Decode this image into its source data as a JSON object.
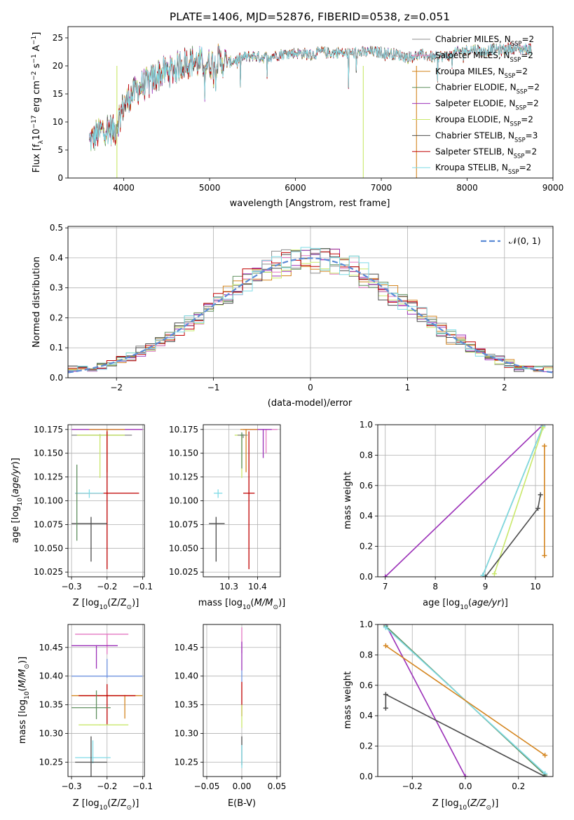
{
  "suptitle": "PLATE=1406, MJD=52876, FIBERID=0538, z=0.051",
  "colors": {
    "Chabrier MILES": "#8c8c8c",
    "Salpeter MILES": "#e377c2",
    "Kroupa MILES": "#d4851f",
    "Chabrier ELODIE": "#5f8f5f",
    "Salpeter ELODIE": "#9b30b8",
    "Kroupa ELODIE": "#c9e86a",
    "Chabrier STELIB": "#4d4d4d",
    "Salpeter STELIB": "#c00000",
    "Kroupa STELIB": "#7fdbe6",
    "gauss": "#5b8bd6",
    "blue": "#6f93e0"
  },
  "chart_data": [
    {
      "id": "spectrum",
      "type": "line",
      "xlabel": "wavelength [Angstrom, rest frame]",
      "ylabel": "Flux [f",
      "ylabel_sub": "λ",
      "ylabel_mid": "10",
      "ylabel_exp": "−17",
      "ylabel_tail": " erg cm",
      "ylabel_exp2": "−2",
      "ylabel_s": " s",
      "ylabel_exp3": "−1",
      "ylabel_A": " A",
      "ylabel_exp4": "−1",
      "ylabel_end": "]",
      "xlim": [
        3350,
        9000
      ],
      "ylim": [
        0,
        27
      ],
      "xticks": [
        "4000",
        "5000",
        "6000",
        "7000",
        "8000",
        "9000"
      ],
      "xtick_values": [
        4000,
        5000,
        6000,
        7000,
        8000,
        9000
      ],
      "yticks": [
        "0",
        "5",
        "10",
        "15",
        "20",
        "25"
      ],
      "ytick_values": [
        0,
        5,
        10,
        15,
        20,
        25
      ],
      "legend_position": "upper-right",
      "x_range": [
        3600,
        8750
      ],
      "envelope": {
        "x": [
          3600,
          3700,
          3800,
          3900,
          3950,
          4000,
          4100,
          4200,
          4300,
          4400,
          4500,
          4600,
          4700,
          4800,
          4900,
          5000,
          5100,
          5200,
          5300,
          5400,
          5500,
          5600,
          5700,
          5800,
          5900,
          6000,
          6100,
          6200,
          6300,
          6400,
          6500,
          6600,
          6700,
          6800,
          6900,
          7000,
          7100,
          7200,
          7300,
          7400,
          7500,
          7600,
          7700,
          7800,
          7900,
          8000,
          8100,
          8200,
          8300,
          8400,
          8500,
          8600,
          8750
        ],
        "y": [
          6.5,
          8,
          9,
          8.5,
          11,
          13,
          15,
          16.5,
          17,
          18.5,
          19,
          19.5,
          20.5,
          20.8,
          20.5,
          20.5,
          21,
          20.5,
          21,
          21.5,
          21.8,
          21.5,
          21.7,
          22,
          22.2,
          22.3,
          22.2,
          22,
          22.5,
          22.3,
          22.4,
          22.2,
          22.3,
          22.4,
          22.5,
          22.4,
          22.2,
          22,
          21.5,
          21.8,
          22,
          21.5,
          21.7,
          21.8,
          22.5,
          22.8,
          23,
          22.5,
          23,
          22.8,
          23.2,
          23,
          23
        ]
      },
      "series": [
        {
          "name": "Chabrier MILES",
          "nssp": "2"
        },
        {
          "name": "Salpeter MILES",
          "nssp": "2"
        },
        {
          "name": "Kroupa MILES",
          "nssp": "2"
        },
        {
          "name": "Chabrier ELODIE",
          "nssp": "2"
        },
        {
          "name": "Salpeter ELODIE",
          "nssp": "2"
        },
        {
          "name": "Kroupa ELODIE",
          "nssp": "2"
        },
        {
          "name": "Chabrier STELIB",
          "nssp": "3"
        },
        {
          "name": "Salpeter STELIB",
          "nssp": "2"
        },
        {
          "name": "Kroupa STELIB",
          "nssp": "2"
        }
      ],
      "legend_sub": "SSP"
    },
    {
      "id": "residuals",
      "type": "line",
      "xlabel": "(data-model)/error",
      "ylabel": "Normed distribution",
      "xlim": [
        -2.5,
        2.5
      ],
      "ylim": [
        0,
        0.505
      ],
      "xticks": [
        "−2",
        "−1",
        "0",
        "1",
        "2"
      ],
      "xtick_values": [
        -2,
        -1,
        0,
        1,
        2
      ],
      "yticks": [
        "0.0",
        "0.1",
        "0.2",
        "0.3",
        "0.4",
        "0.5"
      ],
      "ytick_values": [
        0,
        0.1,
        0.2,
        0.3,
        0.4,
        0.5
      ],
      "grid": true,
      "legend_position": "upper-right",
      "gauss_label": "𝒩(0, 1)",
      "bin_width": 0.1,
      "hist_range": [
        -2.5,
        2.5
      ]
    },
    {
      "id": "age_vs_Z",
      "type": "scatter",
      "xlabel": "Z [log",
      "xlabel_sub": "10",
      "xlabel_tail": "(Z/Z",
      "xlabel_sub2": "⊙",
      "xlabel_end": ")]",
      "ylabel": "age  [log",
      "ylabel_sub": "10",
      "ylabel_tail": "(age/yr)]",
      "xlim": [
        -0.31,
        -0.095
      ],
      "ylim": [
        10.02,
        10.18
      ],
      "xticks": [
        "−0.3",
        "−0.2",
        "−0.1"
      ],
      "xtick_values": [
        -0.3,
        -0.2,
        -0.1
      ],
      "yticks": [
        "10.025",
        "10.050",
        "10.075",
        "10.100",
        "10.125",
        "10.150",
        "10.175"
      ],
      "ytick_values": [
        10.025,
        10.05,
        10.075,
        10.1,
        10.125,
        10.15,
        10.175
      ],
      "grid": true,
      "points": [
        {
          "s": "Salpeter MILES",
          "x": -0.2,
          "xerr": [
            0.1,
            0.1
          ],
          "y": 10.175,
          "yerr": [
            0.005,
            0
          ]
        },
        {
          "s": "Salpeter ELODIE",
          "x": -0.2,
          "xerr": [
            0.1,
            0.1
          ],
          "y": 10.175,
          "yerr": [
            0.045,
            0
          ]
        },
        {
          "s": "Kroupa MILES",
          "x": -0.2,
          "xerr": [
            0.05,
            0.05
          ],
          "y": 10.175,
          "yerr": [
            0.045,
            0
          ]
        },
        {
          "s": "Chabrier MILES",
          "x": -0.22,
          "xerr": [
            0.08,
            0.09
          ],
          "y": 10.169,
          "yerr": [
            0.003,
            0.001
          ]
        },
        {
          "s": "Kroupa ELODIE",
          "x": -0.22,
          "xerr": [
            0.065,
            0.07
          ],
          "y": 10.169,
          "yerr": [
            0.045,
            0
          ]
        },
        {
          "s": "Salpeter STELIB",
          "x": -0.2,
          "xerr": [
            0.09,
            0.09
          ],
          "y": 10.108,
          "yerr": [
            0.08,
            0.065
          ]
        },
        {
          "s": "Kroupa STELIB",
          "x": -0.25,
          "xerr": [
            0.04,
            0.04
          ],
          "y": 10.108,
          "yerr": [
            0.005,
            0.004
          ]
        },
        {
          "s": "Chabrier STELIB",
          "x": -0.245,
          "xerr": [
            0.055,
            0.045
          ],
          "y": 10.076,
          "yerr": [
            0.04,
            0.007
          ]
        },
        {
          "s": "Chabrier ELODIE",
          "x": -0.285,
          "xerr": [
            0.001,
            0.001
          ],
          "y": 10.108,
          "yerr": [
            0.05,
            0.03
          ]
        }
      ]
    },
    {
      "id": "age_vs_mass",
      "type": "scatter",
      "xlabel": "mass [log",
      "xlabel_sub": "10",
      "xlabel_tail": "(M/M",
      "xlabel_sub2": "⊙",
      "xlabel_end": ")]",
      "xlim": [
        10.21,
        10.48
      ],
      "ylim": [
        10.02,
        10.18
      ],
      "xticks": [
        "10.3",
        "10.4"
      ],
      "xtick_values": [
        10.3,
        10.4
      ],
      "yticks": [
        "10.025",
        "10.050",
        "10.075",
        "10.100",
        "10.125",
        "10.150",
        "10.175"
      ],
      "ytick_values": [
        10.025,
        10.05,
        10.075,
        10.1,
        10.125,
        10.15,
        10.175
      ],
      "grid": true,
      "points": [
        {
          "s": "Salpeter MILES",
          "x": 10.43,
          "xerr": [
            0.06,
            0.04
          ],
          "y": 10.175,
          "yerr": [
            0.025,
            0
          ]
        },
        {
          "s": "Salpeter ELODIE",
          "x": 10.42,
          "xerr": [
            0.07,
            0.03
          ],
          "y": 10.175,
          "yerr": [
            0.03,
            0
          ]
        },
        {
          "s": "Kroupa MILES",
          "x": 10.36,
          "xerr": [
            0.02,
            0.04
          ],
          "y": 10.175,
          "yerr": [
            0.045,
            0
          ]
        },
        {
          "s": "Kroupa ELODIE",
          "x": 10.345,
          "xerr": [
            0.025,
            0.02
          ],
          "y": 10.169,
          "yerr": [
            0.045,
            0
          ]
        },
        {
          "s": "Chabrier MILES",
          "x": 10.35,
          "xerr": [
            0.02,
            0.015
          ],
          "y": 10.169,
          "yerr": [
            0.003,
            0.001
          ]
        },
        {
          "s": "Chabrier ELODIE",
          "x": 10.345,
          "xerr": [
            0.004,
            0.004
          ],
          "y": 10.169,
          "yerr": [
            0.035,
            0.003
          ]
        },
        {
          "s": "Salpeter STELIB",
          "x": 10.37,
          "xerr": [
            0.02,
            0.02
          ],
          "y": 10.108,
          "yerr": [
            0.08,
            0.065
          ]
        },
        {
          "s": "Kroupa STELIB",
          "x": 10.262,
          "xerr": [
            0.015,
            0.015
          ],
          "y": 10.108,
          "yerr": [
            0.005,
            0.004
          ]
        },
        {
          "s": "Chabrier STELIB",
          "x": 10.255,
          "xerr": [
            0.025,
            0.03
          ],
          "y": 10.076,
          "yerr": [
            0.04,
            0.007
          ]
        }
      ]
    },
    {
      "id": "weight_vs_age",
      "type": "line",
      "xlabel": "age  [log",
      "xlabel_sub": "10",
      "xlabel_tail": "(age/yr)]",
      "ylabel": "mass weight",
      "xlim": [
        6.85,
        10.35
      ],
      "ylim": [
        0,
        1
      ],
      "xticks": [
        "7",
        "8",
        "9",
        "10"
      ],
      "xtick_values": [
        7,
        8,
        9,
        10
      ],
      "yticks": [
        "0.0",
        "0.2",
        "0.4",
        "0.6",
        "0.8",
        "1.0"
      ],
      "ytick_values": [
        0,
        0.2,
        0.4,
        0.6,
        0.8,
        1.0
      ],
      "grid": true,
      "lines": [
        {
          "s": "Salpeter ELODIE",
          "x": [
            7.0,
            10.15
          ],
          "y": [
            0.0,
            1.0
          ]
        },
        {
          "s": "Chabrier ELODIE",
          "x": [
            8.95,
            10.15
          ],
          "y": [
            0.01,
            0.99
          ]
        },
        {
          "s": "Kroupa STELIB",
          "x": [
            8.95,
            10.15
          ],
          "y": [
            0.01,
            0.99
          ]
        },
        {
          "s": "Kroupa ELODIE",
          "x": [
            9.18,
            10.15
          ],
          "y": [
            0.02,
            0.98
          ]
        },
        {
          "s": "Chabrier STELIB",
          "x": [
            9.0,
            10.05,
            10.1
          ],
          "y": [
            0.0,
            0.45,
            0.54
          ]
        },
        {
          "s": "Kroupa MILES",
          "x": [
            10.18,
            10.18
          ],
          "y": [
            0.14,
            0.86
          ]
        }
      ]
    },
    {
      "id": "mass_vs_Z",
      "type": "scatter",
      "xlabel": "Z [log",
      "xlabel_sub": "10",
      "xlabel_tail": "(Z/Z",
      "xlabel_sub2": "⊙",
      "xlabel_end": ")]",
      "ylabel": "mass [log",
      "ylabel_sub": "10",
      "ylabel_tail": "(M/M",
      "ylabel_sub2": "⊙",
      "ylabel_end": ")]",
      "xlim": [
        -0.31,
        -0.095
      ],
      "ylim": [
        10.225,
        10.49
      ],
      "xticks": [
        "−0.3",
        "−0.2",
        "−0.1"
      ],
      "xtick_values": [
        -0.3,
        -0.2,
        -0.1
      ],
      "yticks": [
        "10.25",
        "10.30",
        "10.35",
        "10.40",
        "10.45"
      ],
      "ytick_values": [
        10.25,
        10.3,
        10.35,
        10.4,
        10.45
      ],
      "grid": true,
      "points": [
        {
          "s": "Salpeter MILES",
          "x": -0.2,
          "xerr": [
            0.09,
            0.06
          ],
          "y": 10.473,
          "yerr": [
            0.035,
            0.001
          ]
        },
        {
          "s": "Salpeter ELODIE",
          "x": -0.23,
          "xerr": [
            0.07,
            0.06
          ],
          "y": 10.453,
          "yerr": [
            0.04,
            0.001
          ]
        },
        {
          "s": "blue",
          "x": -0.2,
          "xerr": [
            0.1,
            0.1
          ],
          "y": 10.4,
          "yerr": [
            0.003,
            0.03
          ]
        },
        {
          "s": "Kroupa MILES",
          "x": -0.15,
          "xerr": [
            0.15,
            0.05
          ],
          "y": 10.366,
          "yerr": [
            0.04,
            0.001
          ]
        },
        {
          "s": "Salpeter STELIB",
          "x": -0.2,
          "xerr": [
            0.08,
            0.08
          ],
          "y": 10.366,
          "yerr": [
            0.05,
            0.02
          ]
        },
        {
          "s": "Chabrier ELODIE",
          "x": -0.23,
          "xerr": [
            0.07,
            0.04
          ],
          "y": 10.345,
          "yerr": [
            0.02,
            0.03
          ]
        },
        {
          "s": "Kroupa ELODIE",
          "x": -0.22,
          "xerr": [
            0.06,
            0.08
          ],
          "y": 10.315,
          "yerr": [
            0.001,
            0.001
          ]
        },
        {
          "s": "Kroupa STELIB",
          "x": -0.24,
          "xerr": [
            0.05,
            0.05
          ],
          "y": 10.258,
          "yerr": [
            0.01,
            0.03
          ]
        },
        {
          "s": "Chabrier STELIB",
          "x": -0.245,
          "xerr": [
            0.045,
            0.045
          ],
          "y": 10.25,
          "yerr": [
            0.03,
            0.045
          ]
        }
      ]
    },
    {
      "id": "mass_vs_EBV",
      "type": "scatter",
      "xlabel": "E(B-V)",
      "xlim": [
        -0.055,
        0.055
      ],
      "ylim": [
        10.225,
        10.49
      ],
      "xticks": [
        "−0.05",
        "0.00",
        "0.05"
      ],
      "xtick_values": [
        -0.05,
        0,
        0.05
      ],
      "yticks": [
        "10.25",
        "10.30",
        "10.35",
        "10.40",
        "10.45"
      ],
      "ytick_values": [
        10.25,
        10.3,
        10.35,
        10.4,
        10.45
      ],
      "grid": true,
      "points": [
        {
          "s": "Salpeter MILES",
          "x": 0,
          "y": 10.46,
          "yerr": [
            0.02,
            0.025
          ]
        },
        {
          "s": "Salpeter ELODIE",
          "x": 0,
          "y": 10.44,
          "yerr": [
            0.03,
            0.02
          ]
        },
        {
          "s": "blue",
          "x": 0,
          "y": 10.4,
          "yerr": [
            0.01,
            0.01
          ]
        },
        {
          "s": "Salpeter STELIB",
          "x": 0,
          "y": 10.36,
          "yerr": [
            0.03,
            0.03
          ]
        },
        {
          "s": "Kroupa ELODIE",
          "x": 0,
          "y": 10.33,
          "yerr": [
            0.02,
            0.02
          ]
        },
        {
          "s": "Chabrier STELIB",
          "x": 0,
          "y": 10.27,
          "yerr": [
            0.025,
            0.025
          ]
        },
        {
          "s": "Kroupa STELIB",
          "x": 0,
          "y": 10.26,
          "yerr": [
            0.02,
            0.02
          ]
        }
      ]
    },
    {
      "id": "weight_vs_Z",
      "type": "line",
      "xlabel": "Z [log",
      "xlabel_sub": "10",
      "xlabel_tail": "(Z/Z",
      "xlabel_sub2": "⊙",
      "xlabel_end": ")]",
      "ylabel": "mass weight",
      "xlim": [
        -0.33,
        0.33
      ],
      "ylim": [
        0,
        1
      ],
      "xticks": [
        "−0.2",
        "0.0",
        "0.2"
      ],
      "xtick_values": [
        -0.2,
        0,
        0.2
      ],
      "yticks": [
        "0.0",
        "0.2",
        "0.4",
        "0.6",
        "0.8",
        "1.0"
      ],
      "ytick_values": [
        0,
        0.2,
        0.4,
        0.6,
        0.8,
        1.0
      ],
      "grid": true,
      "lines": [
        {
          "s": "Salpeter ELODIE",
          "x": [
            -0.3,
            0.0
          ],
          "y": [
            1.0,
            0.0
          ]
        },
        {
          "s": "Chabrier ELODIE",
          "x": [
            -0.3,
            0.3
          ],
          "y": [
            0.99,
            0.01
          ]
        },
        {
          "s": "Kroupa STELIB",
          "x": [
            -0.3,
            0.3
          ],
          "y": [
            0.98,
            0.02
          ]
        },
        {
          "s": "Kroupa MILES",
          "x": [
            -0.3,
            0.3
          ],
          "y": [
            0.86,
            0.14
          ]
        },
        {
          "s": "Chabrier STELIB",
          "x": [
            -0.3,
            -0.3,
            0.3
          ],
          "y": [
            0.45,
            0.54,
            0.0
          ]
        }
      ]
    }
  ]
}
